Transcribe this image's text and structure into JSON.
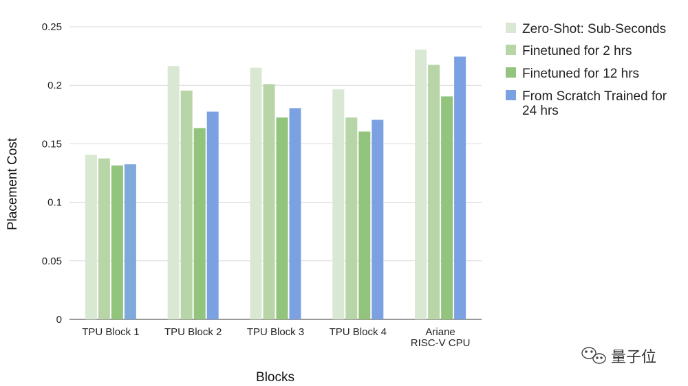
{
  "chart_data": {
    "type": "bar",
    "title": "",
    "xlabel": "Blocks",
    "ylabel": "Placement Cost",
    "ylim": [
      0,
      0.25
    ],
    "yticks": [
      "0",
      "0.05",
      "0.1",
      "0.15",
      "0.2",
      "0.25"
    ],
    "grid": true,
    "legend_position": "right",
    "categories": [
      [
        "TPU Block 1"
      ],
      [
        "TPU Block 2"
      ],
      [
        "TPU Block 3"
      ],
      [
        "TPU Block 4"
      ],
      [
        "Ariane",
        "RISC-V CPU"
      ]
    ],
    "series": [
      {
        "name": "Zero-Shot: Sub-Seconds",
        "color": "#d9e8d2",
        "values": [
          0.1405,
          0.2165,
          0.215,
          0.1965,
          0.2305
        ]
      },
      {
        "name": "Finetuned for 2 hrs",
        "color": "#b7d5a7",
        "values": [
          0.1375,
          0.1955,
          0.201,
          0.1725,
          0.2175
        ]
      },
      {
        "name": "Finetuned for 12 hrs",
        "color": "#93c47d",
        "values": [
          0.1315,
          0.1635,
          0.1725,
          0.1605,
          0.1905
        ]
      },
      {
        "name": "From Scratch Trained for 24 hrs",
        "color": "#7ba1e2",
        "colors": [
          "#7ea9da",
          "#7ba1e2",
          "#7ba1e2",
          "#7ba1e2",
          "#7ba1e2"
        ],
        "values": [
          0.1325,
          0.1775,
          0.1805,
          0.1705,
          0.2245
        ],
        "label_lines": [
          "From Scratch Trained for",
          "24 hrs"
        ]
      }
    ]
  },
  "watermark": {
    "text": "量子位",
    "icon": "wechat-icon"
  }
}
